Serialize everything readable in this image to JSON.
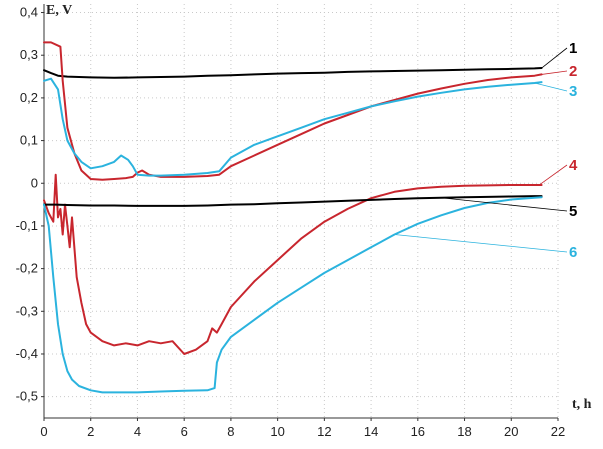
{
  "chart_data": {
    "type": "line",
    "xlabel": "t, h",
    "ylabel": "E, V",
    "xlim": [
      0,
      22
    ],
    "ylim": [
      -0.55,
      0.42
    ],
    "grid": true,
    "x_ticks": [
      0,
      2,
      4,
      6,
      8,
      10,
      12,
      14,
      16,
      18,
      20,
      22
    ],
    "y_ticks": [
      0.4,
      0.3,
      0.2,
      0.1,
      0,
      -0.1,
      -0.2,
      -0.3,
      -0.4,
      -0.5
    ],
    "x_tick_labels": [
      "0",
      "2",
      "4",
      "6",
      "8",
      "10",
      "12",
      "14",
      "16",
      "18",
      "20",
      "22"
    ],
    "y_tick_labels": [
      "0,4",
      "0,3",
      "0,2",
      "0,1",
      "0",
      "-0,1",
      "-0,2",
      "-0,3",
      "-0,4",
      "-0,5"
    ],
    "series": [
      {
        "label": "1",
        "color": "#000000",
        "x": [
          0,
          0.3,
          0.6,
          1.0,
          2,
          3,
          4,
          5,
          6,
          7,
          8,
          9,
          10,
          11,
          12,
          13,
          14,
          15,
          16,
          17,
          18,
          19,
          20,
          21,
          21.3
        ],
        "y": [
          0.265,
          0.258,
          0.252,
          0.25,
          0.248,
          0.247,
          0.248,
          0.249,
          0.25,
          0.252,
          0.253,
          0.255,
          0.257,
          0.258,
          0.259,
          0.261,
          0.262,
          0.263,
          0.264,
          0.265,
          0.266,
          0.267,
          0.268,
          0.269,
          0.27
        ]
      },
      {
        "label": "2",
        "color": "#c8262e",
        "x": [
          0,
          0.3,
          0.7,
          0.8,
          1.0,
          1.3,
          1.6,
          2.0,
          2.5,
          3.0,
          3.5,
          3.8,
          4.0,
          4.2,
          4.5,
          5,
          6,
          7,
          7.5,
          8,
          9,
          10,
          11,
          12,
          13,
          14,
          15,
          16,
          17,
          18,
          19,
          20,
          21,
          21.3
        ],
        "y": [
          0.33,
          0.33,
          0.32,
          0.24,
          0.13,
          0.07,
          0.03,
          0.01,
          0.008,
          0.01,
          0.012,
          0.015,
          0.025,
          0.03,
          0.02,
          0.015,
          0.015,
          0.017,
          0.02,
          0.04,
          0.065,
          0.09,
          0.115,
          0.14,
          0.16,
          0.18,
          0.195,
          0.21,
          0.222,
          0.233,
          0.242,
          0.248,
          0.252,
          0.255
        ]
      },
      {
        "label": "3",
        "color": "#2bb3de",
        "x": [
          0,
          0.3,
          0.6,
          0.8,
          1.0,
          1.3,
          1.6,
          2.0,
          2.5,
          3.0,
          3.3,
          3.6,
          3.8,
          4.0,
          4.5,
          5,
          6,
          7,
          7.5,
          8,
          9,
          10,
          11,
          12,
          13,
          14,
          15,
          16,
          17,
          18,
          19,
          20,
          21,
          21.3
        ],
        "y": [
          0.24,
          0.245,
          0.22,
          0.15,
          0.1,
          0.07,
          0.05,
          0.035,
          0.04,
          0.05,
          0.065,
          0.055,
          0.04,
          0.02,
          0.018,
          0.018,
          0.02,
          0.024,
          0.028,
          0.06,
          0.09,
          0.11,
          0.13,
          0.15,
          0.165,
          0.18,
          0.192,
          0.203,
          0.212,
          0.22,
          0.226,
          0.231,
          0.235,
          0.237
        ]
      },
      {
        "label": "4",
        "color": "#c8262e",
        "x": [
          0,
          0.2,
          0.4,
          0.5,
          0.6,
          0.7,
          0.8,
          0.9,
          1.0,
          1.1,
          1.2,
          1.4,
          1.6,
          1.8,
          2.0,
          2.5,
          3.0,
          3.5,
          4.0,
          4.5,
          5.0,
          5.5,
          6.0,
          6.5,
          7.0,
          7.2,
          7.4,
          7.6,
          8,
          9,
          10,
          11,
          12,
          13,
          14,
          15,
          16,
          17,
          18,
          19,
          20,
          21,
          21.3
        ],
        "y": [
          -0.04,
          -0.07,
          -0.09,
          0.02,
          -0.08,
          -0.06,
          -0.12,
          -0.05,
          -0.1,
          -0.15,
          -0.08,
          -0.22,
          -0.28,
          -0.33,
          -0.35,
          -0.37,
          -0.38,
          -0.375,
          -0.38,
          -0.37,
          -0.375,
          -0.37,
          -0.4,
          -0.39,
          -0.37,
          -0.34,
          -0.35,
          -0.33,
          -0.29,
          -0.23,
          -0.18,
          -0.13,
          -0.09,
          -0.06,
          -0.035,
          -0.02,
          -0.012,
          -0.008,
          -0.006,
          -0.005,
          -0.004,
          -0.004,
          -0.004
        ]
      },
      {
        "label": "5",
        "color": "#000000",
        "x": [
          0,
          0.5,
          1,
          2,
          3,
          4,
          5,
          6,
          7,
          8,
          9,
          10,
          11,
          12,
          13,
          14,
          15,
          16,
          17,
          18,
          19,
          20,
          21,
          21.3
        ],
        "y": [
          -0.05,
          -0.05,
          -0.051,
          -0.052,
          -0.052,
          -0.053,
          -0.053,
          -0.053,
          -0.052,
          -0.05,
          -0.049,
          -0.047,
          -0.045,
          -0.043,
          -0.041,
          -0.039,
          -0.037,
          -0.035,
          -0.034,
          -0.033,
          -0.032,
          -0.031,
          -0.03,
          -0.03
        ]
      },
      {
        "label": "6",
        "color": "#2bb3de",
        "x": [
          0,
          0.2,
          0.4,
          0.6,
          0.8,
          1.0,
          1.2,
          1.5,
          2.0,
          2.5,
          3.0,
          4.0,
          5.0,
          6.0,
          7.0,
          7.3,
          7.4,
          7.6,
          8,
          9,
          10,
          11,
          12,
          13,
          14,
          15,
          16,
          17,
          18,
          19,
          20,
          21,
          21.3
        ],
        "y": [
          -0.05,
          -0.1,
          -0.22,
          -0.33,
          -0.4,
          -0.44,
          -0.46,
          -0.475,
          -0.485,
          -0.49,
          -0.49,
          -0.49,
          -0.488,
          -0.486,
          -0.485,
          -0.48,
          -0.42,
          -0.39,
          -0.36,
          -0.32,
          -0.28,
          -0.245,
          -0.21,
          -0.18,
          -0.15,
          -0.12,
          -0.095,
          -0.075,
          -0.058,
          -0.046,
          -0.038,
          -0.034,
          -0.033
        ]
      }
    ],
    "callouts": [
      {
        "label": "1",
        "color": "#000000",
        "target": [
          21.3,
          0.27
        ]
      },
      {
        "label": "2",
        "color": "#c8262e",
        "target": [
          21.3,
          0.255
        ]
      },
      {
        "label": "3",
        "color": "#2bb3de",
        "target": [
          21.0,
          0.235
        ]
      },
      {
        "label": "4",
        "color": "#c8262e",
        "target": [
          21.2,
          -0.004
        ]
      },
      {
        "label": "5",
        "color": "#000000",
        "target": [
          17.0,
          -0.034
        ]
      },
      {
        "label": "6",
        "color": "#2bb3de",
        "target": [
          15.0,
          -0.12
        ]
      }
    ]
  }
}
